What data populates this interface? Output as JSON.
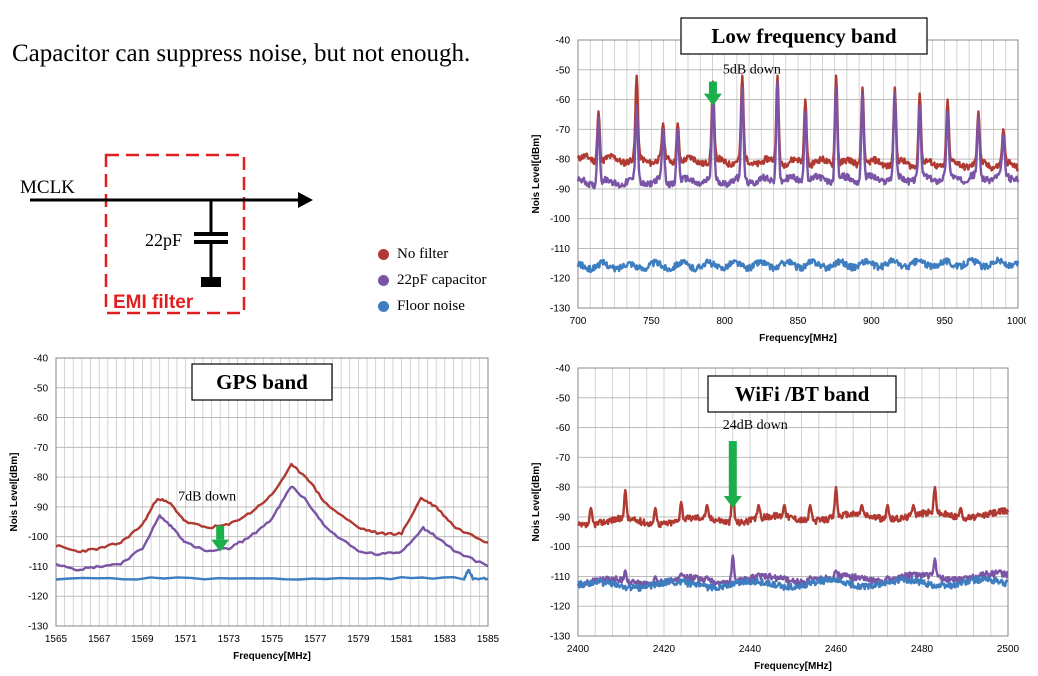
{
  "headline": "Capacitor can suppress noise, but not enough.",
  "circuit": {
    "signal_label": "MCLK",
    "capacitor_label": "22pF",
    "filter_label": "EMI filter"
  },
  "legend": [
    {
      "name": "No filter",
      "color": "#b03a32"
    },
    {
      "name": "22pF capacitor",
      "color": "#7a55a6"
    },
    {
      "name": "Floor noise",
      "color": "#3e7dbf"
    }
  ],
  "chart_data": [
    {
      "type": "line",
      "title": "Low frequency band",
      "xlabel": "Frequency[MHz]",
      "ylabel": "Nois Level[dBm]",
      "xlim": [
        700,
        1000
      ],
      "ylim": [
        -130,
        -40
      ],
      "x_ticks": [
        700,
        750,
        800,
        850,
        900,
        950,
        1000
      ],
      "y_ticks": [
        -40,
        -50,
        -60,
        -70,
        -80,
        -90,
        -100,
        -110,
        -120,
        -130
      ],
      "grid": true,
      "annotation": {
        "text": "5dB down",
        "x": 792,
        "y": -58
      },
      "series": [
        {
          "name": "No filter",
          "baseline": [
            [
              700,
              -80
            ],
            [
              1000,
              -82
            ]
          ],
          "peaks": [
            [
              714,
              -64
            ],
            [
              740,
              -52
            ],
            [
              758,
              -68
            ],
            [
              768,
              -68
            ],
            [
              792,
              -54
            ],
            [
              812,
              -52
            ],
            [
              836,
              -52
            ],
            [
              855,
              -60
            ],
            [
              876,
              -52
            ],
            [
              894,
              -56
            ],
            [
              916,
              -56
            ],
            [
              933,
              -58
            ],
            [
              952,
              -60
            ],
            [
              973,
              -64
            ],
            [
              990,
              -70
            ]
          ]
        },
        {
          "name": "22pF capacitor",
          "baseline": [
            [
              700,
              -88
            ],
            [
              1000,
              -86
            ]
          ],
          "peaks": [
            [
              714,
              -66
            ],
            [
              740,
              -62
            ],
            [
              758,
              -70
            ],
            [
              768,
              -70
            ],
            [
              792,
              -58
            ],
            [
              812,
              -56
            ],
            [
              836,
              -54
            ],
            [
              855,
              -64
            ],
            [
              876,
              -56
            ],
            [
              894,
              -58
            ],
            [
              916,
              -58
            ],
            [
              933,
              -62
            ],
            [
              952,
              -64
            ],
            [
              973,
              -66
            ],
            [
              990,
              -72
            ]
          ]
        },
        {
          "name": "Floor noise",
          "baseline": [
            [
              700,
              -116
            ],
            [
              1000,
              -115
            ]
          ],
          "peaks": []
        }
      ]
    },
    {
      "type": "line",
      "title": "GPS band",
      "xlabel": "Frequency[MHz]",
      "ylabel": "Nois Level[dBm]",
      "xlim": [
        1565,
        1585
      ],
      "ylim": [
        -130,
        -40
      ],
      "x_ticks": [
        1565,
        1567,
        1569,
        1571,
        1573,
        1575,
        1577,
        1579,
        1581,
        1583,
        1585
      ],
      "y_ticks": [
        -40,
        -50,
        -60,
        -70,
        -80,
        -90,
        -100,
        -110,
        -120,
        -130
      ],
      "grid": true,
      "annotation": {
        "text": "7dB down",
        "x": 1572.6,
        "y": -101
      },
      "series": [
        {
          "name": "No filter",
          "points": [
            [
              1565,
              -103
            ],
            [
              1566,
              -105
            ],
            [
              1567,
              -104
            ],
            [
              1568,
              -102
            ],
            [
              1569,
              -96
            ],
            [
              1569.7,
              -87
            ],
            [
              1570.3,
              -89
            ],
            [
              1571,
              -95
            ],
            [
              1572,
              -97
            ],
            [
              1573,
              -96
            ],
            [
              1574,
              -92
            ],
            [
              1575,
              -86
            ],
            [
              1575.9,
              -76
            ],
            [
              1576.6,
              -80
            ],
            [
              1577.5,
              -89
            ],
            [
              1579,
              -97
            ],
            [
              1580,
              -99
            ],
            [
              1581,
              -99
            ],
            [
              1581.9,
              -87
            ],
            [
              1582.6,
              -90
            ],
            [
              1583.5,
              -97
            ],
            [
              1585,
              -102
            ]
          ]
        },
        {
          "name": "22pF capacitor",
          "points": [
            [
              1565,
              -109
            ],
            [
              1566,
              -111
            ],
            [
              1567,
              -110
            ],
            [
              1568,
              -109
            ],
            [
              1569,
              -104
            ],
            [
              1569.8,
              -93
            ],
            [
              1570.4,
              -97
            ],
            [
              1571,
              -102
            ],
            [
              1572,
              -105
            ],
            [
              1573,
              -104
            ],
            [
              1574,
              -100
            ],
            [
              1575,
              -94
            ],
            [
              1575.9,
              -83
            ],
            [
              1576.6,
              -88
            ],
            [
              1577.5,
              -97
            ],
            [
              1579,
              -105
            ],
            [
              1580,
              -106
            ],
            [
              1581,
              -105
            ],
            [
              1582,
              -97
            ],
            [
              1582.6,
              -100
            ],
            [
              1583.5,
              -105
            ],
            [
              1585,
              -110
            ]
          ]
        },
        {
          "name": "Floor noise",
          "points": [
            [
              1565,
              -114
            ],
            [
              1570,
              -114
            ],
            [
              1575,
              -114
            ],
            [
              1580,
              -114
            ],
            [
              1583.9,
              -114
            ],
            [
              1584.1,
              -111
            ],
            [
              1584.3,
              -114
            ],
            [
              1585,
              -114
            ]
          ]
        }
      ]
    },
    {
      "type": "line",
      "title": "WiFi /BT band",
      "xlabel": "Frequency[MHz]",
      "ylabel": "Nois Level[dBm]",
      "xlim": [
        2400,
        2500
      ],
      "ylim": [
        -130,
        -40
      ],
      "x_ticks": [
        2400,
        2420,
        2440,
        2460,
        2480,
        2500
      ],
      "y_ticks": [
        -40,
        -50,
        -60,
        -70,
        -80,
        -90,
        -100,
        -110,
        -120,
        -130
      ],
      "grid": true,
      "annotation": {
        "text": "24dB down",
        "x": 2436,
        "y": -83
      },
      "series": [
        {
          "name": "No filter",
          "baseline": [
            [
              2400,
              -92
            ],
            [
              2500,
              -89
            ]
          ],
          "peaks": [
            [
              2403,
              -87
            ],
            [
              2411,
              -81
            ],
            [
              2418,
              -87
            ],
            [
              2424,
              -85
            ],
            [
              2430,
              -86
            ],
            [
              2436,
              -79
            ],
            [
              2442,
              -86
            ],
            [
              2448,
              -86
            ],
            [
              2454,
              -86
            ],
            [
              2460,
              -80
            ],
            [
              2466,
              -86
            ],
            [
              2472,
              -86
            ],
            [
              2478,
              -86
            ],
            [
              2483,
              -80
            ],
            [
              2489,
              -87
            ],
            [
              2495,
              -91
            ]
          ]
        },
        {
          "name": "22pF capacitor",
          "baseline": [
            [
              2400,
              -112
            ],
            [
              2500,
              -110
            ]
          ],
          "peaks": [
            [
              2411,
              -108
            ],
            [
              2418,
              -110
            ],
            [
              2424,
              -109
            ],
            [
              2430,
              -110
            ],
            [
              2436,
              -103
            ],
            [
              2442,
              -109
            ],
            [
              2448,
              -110
            ],
            [
              2454,
              -110
            ],
            [
              2460,
              -108
            ],
            [
              2466,
              -110
            ],
            [
              2472,
              -110
            ],
            [
              2478,
              -109
            ],
            [
              2483,
              -104
            ],
            [
              2490,
              -110
            ],
            [
              2498,
              -108
            ]
          ]
        },
        {
          "name": "Floor noise",
          "baseline": [
            [
              2400,
              -113
            ],
            [
              2500,
              -112
            ]
          ],
          "peaks": []
        }
      ]
    }
  ]
}
